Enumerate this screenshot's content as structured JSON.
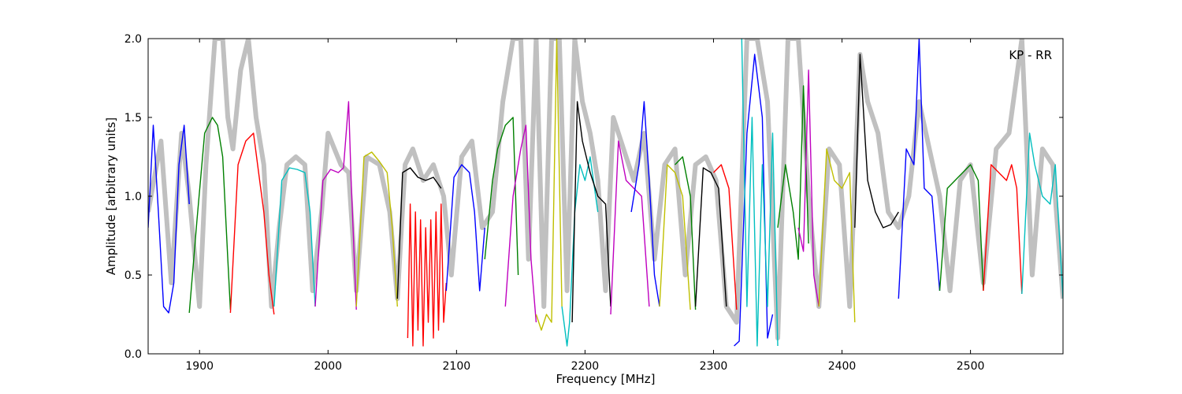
{
  "chart_data": {
    "type": "line",
    "xlabel": "Frequency [MHz]",
    "ylabel": "Amplitude [arbitrary units]",
    "annotation": "KP - RR",
    "xlim": [
      1860,
      2572
    ],
    "ylim": [
      0,
      2.0
    ],
    "xticks": [
      1900,
      2000,
      2100,
      2200,
      2300,
      2400,
      2500
    ],
    "yticks": [
      0.0,
      0.5,
      1.0,
      1.5,
      2.0
    ],
    "ytick_labels": [
      "0.0",
      "0.5",
      "1.0",
      "1.5",
      "2.0"
    ],
    "grid": false,
    "background_series": {
      "name": "",
      "color": "#c0c0c0",
      "x": [
        1860,
        1870,
        1878,
        1886,
        1892,
        1900,
        1905,
        1912,
        1918,
        1922,
        1926,
        1932,
        1938,
        1944,
        1950,
        1956,
        1962,
        1968,
        1975,
        1982,
        1988,
        1995,
        2000,
        2010,
        2016,
        2022,
        2030,
        2040,
        2048,
        2054,
        2060,
        2066,
        2074,
        2082,
        2090,
        2096,
        2104,
        2112,
        2120,
        2128,
        2136,
        2144,
        2150,
        2156,
        2162,
        2168,
        2174,
        2180,
        2186,
        2192,
        2198,
        2204,
        2210,
        2216,
        2222,
        2230,
        2238,
        2246,
        2254,
        2262,
        2270,
        2278,
        2286,
        2294,
        2302,
        2310,
        2318,
        2326,
        2334,
        2342,
        2350,
        2358,
        2366,
        2374,
        2382,
        2390,
        2398,
        2406,
        2414,
        2420,
        2428,
        2436,
        2444,
        2452,
        2460,
        2468,
        2476,
        2484,
        2492,
        2500,
        2510,
        2520,
        2530,
        2540,
        2548,
        2556,
        2564,
        2572
      ],
      "values": [
        0.9,
        1.35,
        0.45,
        1.4,
        1.0,
        0.3,
        1.2,
        2.0,
        2.0,
        1.5,
        1.3,
        1.8,
        2.0,
        1.5,
        1.2,
        0.3,
        0.8,
        1.2,
        1.25,
        1.2,
        0.4,
        0.9,
        1.4,
        1.2,
        1.15,
        0.4,
        1.25,
        1.2,
        0.9,
        0.35,
        1.2,
        1.3,
        1.1,
        1.2,
        1.0,
        0.5,
        1.25,
        1.35,
        0.8,
        0.9,
        1.6,
        2.0,
        2.0,
        0.6,
        2.0,
        0.3,
        2.0,
        2.0,
        0.4,
        2.0,
        1.6,
        1.4,
        1.1,
        0.4,
        1.5,
        1.3,
        1.1,
        1.4,
        0.6,
        1.2,
        1.3,
        0.5,
        1.2,
        1.25,
        1.1,
        0.3,
        0.2,
        2.0,
        2.0,
        1.6,
        0.1,
        2.0,
        2.0,
        1.0,
        0.3,
        1.3,
        1.2,
        0.3,
        1.9,
        1.6,
        1.4,
        0.9,
        0.8,
        1.0,
        1.6,
        1.3,
        1.0,
        0.4,
        1.1,
        1.2,
        0.45,
        1.3,
        1.4,
        2.0,
        0.5,
        1.3,
        1.2,
        0.35
      ]
    },
    "series": [
      {
        "color": "#0000ff",
        "x": [
          1860,
          1864,
          1868,
          1872,
          1876,
          1880,
          1884,
          1888,
          1892
        ],
        "values": [
          0.8,
          1.45,
          0.9,
          0.3,
          0.26,
          0.45,
          1.2,
          1.45,
          0.95
        ]
      },
      {
        "color": "#008000",
        "x": [
          1892,
          1898,
          1904,
          1910,
          1914,
          1918,
          1922,
          1924
        ],
        "values": [
          0.26,
          0.85,
          1.4,
          1.5,
          1.45,
          1.25,
          0.6,
          0.28
        ]
      },
      {
        "color": "#ff0000",
        "x": [
          1924,
          1930,
          1936,
          1942,
          1946,
          1950,
          1954,
          1958
        ],
        "values": [
          0.26,
          1.2,
          1.35,
          1.4,
          1.15,
          0.9,
          0.5,
          0.25
        ]
      },
      {
        "color": "#00bfbf",
        "x": [
          1958,
          1964,
          1970,
          1976,
          1982,
          1986,
          1990
        ],
        "values": [
          0.3,
          1.1,
          1.18,
          1.17,
          1.15,
          0.9,
          0.3
        ]
      },
      {
        "color": "#bf00bf",
        "x": [
          1990,
          1996,
          2002,
          2008,
          2012,
          2016,
          2018,
          2022
        ],
        "values": [
          0.3,
          1.1,
          1.17,
          1.15,
          1.18,
          1.6,
          1.1,
          0.28
        ]
      },
      {
        "color": "#bfbf00",
        "x": [
          2022,
          2028,
          2034,
          2040,
          2046,
          2050,
          2054
        ],
        "values": [
          0.3,
          1.25,
          1.28,
          1.22,
          1.15,
          0.8,
          0.3
        ]
      },
      {
        "color": "#000000",
        "x": [
          2054,
          2058,
          2064,
          2070,
          2076,
          2082,
          2088
        ],
        "values": [
          0.35,
          1.15,
          1.18,
          1.12,
          1.1,
          1.12,
          1.05
        ]
      },
      {
        "color": "#ff0000",
        "x": [
          2062,
          2064,
          2066,
          2068,
          2070,
          2072,
          2074,
          2076,
          2078,
          2080,
          2082,
          2084,
          2086,
          2088,
          2090,
          2092
        ],
        "values": [
          0.1,
          0.95,
          0.05,
          0.9,
          0.15,
          0.85,
          0.05,
          0.8,
          0.2,
          0.85,
          0.1,
          0.9,
          0.15,
          0.95,
          0.2,
          0.45
        ]
      },
      {
        "color": "#0000ff",
        "x": [
          2092,
          2098,
          2104,
          2110,
          2114,
          2118,
          2122
        ],
        "values": [
          0.4,
          1.12,
          1.2,
          1.15,
          0.9,
          0.4,
          0.8
        ]
      },
      {
        "color": "#008000",
        "x": [
          2122,
          2128,
          2132,
          2138,
          2144,
          2148
        ],
        "values": [
          0.6,
          1.1,
          1.3,
          1.45,
          1.5,
          0.5
        ]
      },
      {
        "color": "#bf00bf",
        "x": [
          2138,
          2144,
          2150,
          2154,
          2158,
          2162
        ],
        "values": [
          0.3,
          1.0,
          1.3,
          1.45,
          0.6,
          0.2
        ]
      },
      {
        "color": "#bfbf00",
        "x": [
          2162,
          2166,
          2170,
          2174,
          2178,
          2182
        ],
        "values": [
          0.25,
          0.15,
          0.25,
          0.2,
          2.0,
          0.3
        ]
      },
      {
        "color": "#00bfbf",
        "x": [
          2182,
          2186,
          2188,
          2192,
          2196,
          2200,
          2204,
          2210
        ],
        "values": [
          0.3,
          0.05,
          0.2,
          0.9,
          1.2,
          1.1,
          1.25,
          0.9
        ]
      },
      {
        "color": "#000000",
        "x": [
          2190,
          2194,
          2198,
          2204,
          2210,
          2216,
          2220
        ],
        "values": [
          0.2,
          1.6,
          1.35,
          1.15,
          1.0,
          0.95,
          0.3
        ]
      },
      {
        "color": "#bf00bf",
        "x": [
          2220,
          2226,
          2232,
          2238,
          2244,
          2250
        ],
        "values": [
          0.25,
          1.35,
          1.1,
          1.05,
          1.0,
          0.3
        ]
      },
      {
        "color": "#0000ff",
        "x": [
          2236,
          2242,
          2246,
          2250,
          2254,
          2258
        ],
        "values": [
          0.9,
          1.2,
          1.6,
          1.1,
          0.5,
          0.3
        ]
      },
      {
        "color": "#bfbf00",
        "x": [
          2258,
          2264,
          2270,
          2276,
          2282
        ],
        "values": [
          0.3,
          1.2,
          1.15,
          1.0,
          0.28
        ]
      },
      {
        "color": "#008000",
        "x": [
          2270,
          2276,
          2282,
          2286
        ],
        "values": [
          1.2,
          1.25,
          1.0,
          0.28
        ]
      },
      {
        "color": "#000000",
        "x": [
          2286,
          2292,
          2298,
          2304,
          2310
        ],
        "values": [
          0.3,
          1.18,
          1.15,
          1.05,
          0.3
        ]
      },
      {
        "color": "#ff0000",
        "x": [
          2300,
          2306,
          2312,
          2318
        ],
        "values": [
          1.15,
          1.2,
          1.05,
          0.28
        ]
      },
      {
        "color": "#0000ff",
        "x": [
          2316,
          2320,
          2326,
          2332,
          2338,
          2342,
          2346
        ],
        "values": [
          0.05,
          0.08,
          1.4,
          1.9,
          1.5,
          0.1,
          0.25
        ]
      },
      {
        "color": "#00bfbf",
        "x": [
          2322,
          2326,
          2330,
          2334,
          2338,
          2342,
          2346,
          2350
        ],
        "values": [
          2.0,
          0.3,
          1.5,
          0.05,
          1.2,
          0.3,
          1.4,
          0.05
        ]
      },
      {
        "color": "#008000",
        "x": [
          2350,
          2356,
          2362,
          2366,
          2370,
          2374
        ],
        "values": [
          0.8,
          1.2,
          0.9,
          0.6,
          1.7,
          0.7
        ]
      },
      {
        "color": "#bf00bf",
        "x": [
          2366,
          2370,
          2374,
          2378,
          2382
        ],
        "values": [
          0.8,
          0.65,
          1.8,
          0.5,
          0.3
        ]
      },
      {
        "color": "#bfbf00",
        "x": [
          2382,
          2388,
          2394,
          2400,
          2406,
          2410
        ],
        "values": [
          0.3,
          1.3,
          1.1,
          1.05,
          1.15,
          0.2
        ]
      },
      {
        "color": "#000000",
        "x": [
          2410,
          2414,
          2420,
          2426,
          2432,
          2438,
          2444
        ],
        "values": [
          0.8,
          1.9,
          1.1,
          0.9,
          0.8,
          0.82,
          0.9
        ]
      },
      {
        "color": "#0000ff",
        "x": [
          2444,
          2450,
          2456,
          2460,
          2464,
          2470,
          2476
        ],
        "values": [
          0.35,
          1.3,
          1.2,
          2.0,
          1.05,
          1.0,
          0.4
        ]
      },
      {
        "color": "#008000",
        "x": [
          2476,
          2482,
          2488,
          2494,
          2500,
          2506,
          2510
        ],
        "values": [
          0.4,
          1.05,
          1.1,
          1.15,
          1.2,
          1.1,
          0.4
        ]
      },
      {
        "color": "#ff0000",
        "x": [
          2510,
          2516,
          2522,
          2528,
          2532,
          2536,
          2540
        ],
        "values": [
          0.4,
          1.2,
          1.15,
          1.1,
          1.2,
          1.05,
          0.38
        ]
      },
      {
        "color": "#00bfbf",
        "x": [
          2540,
          2546,
          2550,
          2556,
          2562,
          2566,
          2572
        ],
        "values": [
          0.38,
          1.4,
          1.2,
          1.0,
          0.95,
          1.2,
          0.35
        ]
      }
    ]
  }
}
